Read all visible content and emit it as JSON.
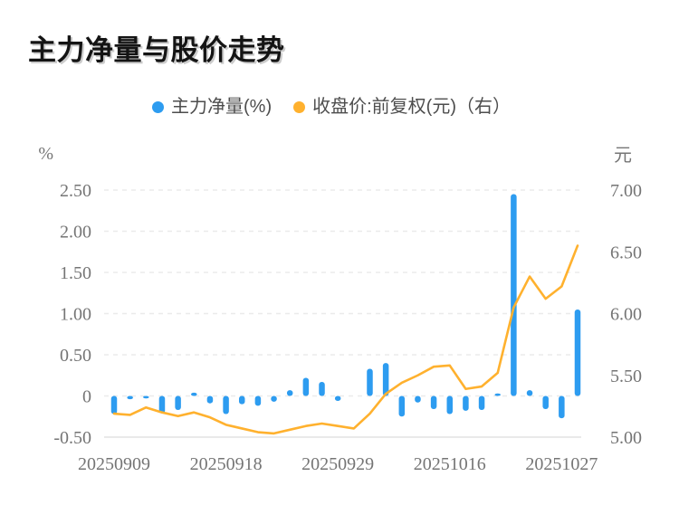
{
  "title": "主力净量与股价走势",
  "legend": [
    {
      "label": "主力净量(%)",
      "color": "#2D9CF0"
    },
    {
      "label": "收盘价:前复权(元)（右）",
      "color": "#FFB12E"
    }
  ],
  "chart_data": {
    "type": "bar+line combo",
    "title": "主力净量与股价走势",
    "point_count": 30,
    "x_ticks": [
      {
        "index": 0,
        "label": "20250909"
      },
      {
        "index": 7,
        "label": "20250918"
      },
      {
        "index": 14,
        "label": "20250929"
      },
      {
        "index": 21,
        "label": "20251016"
      },
      {
        "index": 28,
        "label": "20251027"
      }
    ],
    "series": [
      {
        "name": "主力净量(%)",
        "type": "bar",
        "axis": "left",
        "color": "#2D9CF0",
        "values": [
          -0.22,
          -0.04,
          -0.03,
          -0.21,
          -0.17,
          0.04,
          -0.09,
          -0.22,
          -0.1,
          -0.12,
          -0.07,
          0.07,
          0.22,
          0.17,
          -0.06,
          0,
          0.33,
          0.4,
          -0.25,
          -0.08,
          -0.16,
          -0.22,
          -0.18,
          -0.17,
          0.03,
          2.45,
          0.07,
          -0.16,
          -0.27,
          1.05
        ]
      },
      {
        "name": "收盘价:前复权(元)（右）",
        "type": "line",
        "axis": "right",
        "color": "#FFB12E",
        "values": [
          5.19,
          5.18,
          5.24,
          5.2,
          5.17,
          5.2,
          5.16,
          5.1,
          5.07,
          5.04,
          5.03,
          5.06,
          5.09,
          5.11,
          5.09,
          5.07,
          5.19,
          5.35,
          5.44,
          5.5,
          5.57,
          5.58,
          5.39,
          5.41,
          5.52,
          6.05,
          6.3,
          6.12,
          6.22,
          6.55
        ]
      }
    ],
    "left_axis": {
      "unit": "%",
      "min": -0.5,
      "max": 2.5,
      "tick_labels": [
        "2.50",
        "2.00",
        "1.50",
        "1.00",
        "0.50",
        "0",
        "-0.50"
      ]
    },
    "right_axis": {
      "unit": "元",
      "min": 5.0,
      "max": 7.0,
      "tick_labels": [
        "7.00",
        "6.50",
        "6.00",
        "5.50",
        "5.00"
      ]
    },
    "grid": {
      "horizontal": "dashed",
      "line_color": "#ebebeb",
      "axis_line_color": "#e2e2e2",
      "tick_text_color": "#757575"
    },
    "legend_position": "top-center"
  }
}
